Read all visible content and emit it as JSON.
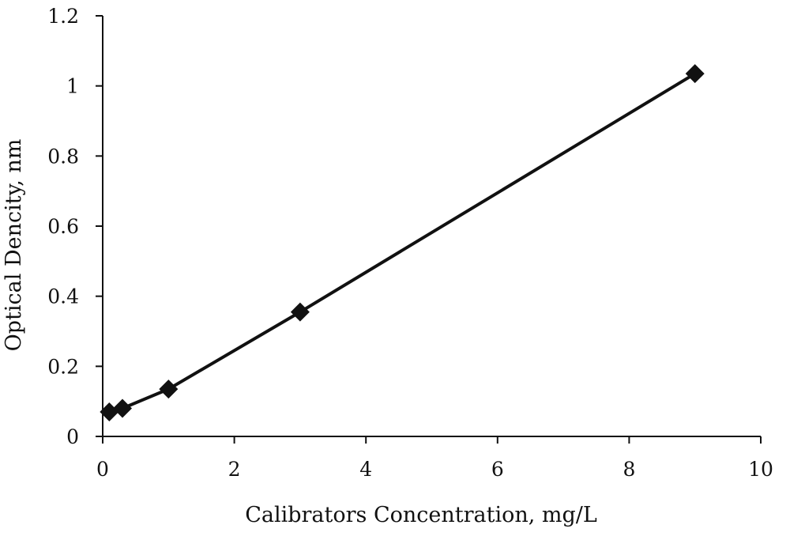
{
  "chart_data": {
    "type": "line",
    "title": "",
    "xlabel": "Calibrators Concentration, mg/L",
    "ylabel": "Optical Dencity, nm",
    "xlim": [
      0,
      10
    ],
    "ylim": [
      0,
      1.2
    ],
    "x_ticks": [
      0,
      2,
      4,
      6,
      8,
      10
    ],
    "y_ticks": [
      0,
      0.2,
      0.4,
      0.6,
      0.8,
      1,
      1.2
    ],
    "x_tick_labels": [
      "0",
      "2",
      "4",
      "6",
      "8",
      "10"
    ],
    "y_tick_labels": [
      "0",
      "0.2",
      "0.4",
      "0.6",
      "0.8",
      "1",
      "1.2"
    ],
    "grid": false,
    "legend": "none",
    "marker": "diamond",
    "series": [
      {
        "x": [
          0.1,
          0.3,
          1,
          3,
          9
        ],
        "y": [
          0.07,
          0.08,
          0.135,
          0.355,
          1.035
        ]
      }
    ],
    "colors": {
      "line": "#111111",
      "marker": "#111111",
      "axis": "#111111"
    }
  }
}
